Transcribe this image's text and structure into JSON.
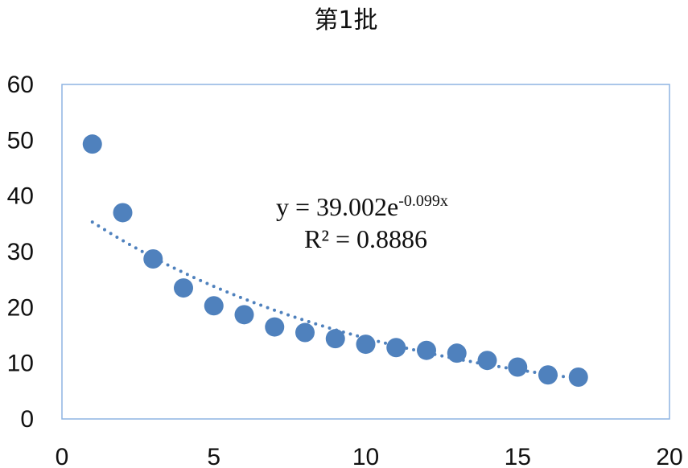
{
  "chart_data": {
    "type": "scatter",
    "title": "第1批",
    "xlabel": "",
    "ylabel": "",
    "xlim": [
      0,
      20
    ],
    "ylim": [
      0,
      60
    ],
    "x_ticks": [
      0,
      5,
      10,
      15,
      20
    ],
    "y_ticks": [
      0,
      10,
      20,
      30,
      40,
      50,
      60
    ],
    "grid": false,
    "legend": "none",
    "marker_color": "#4F81BD",
    "series": [
      {
        "x": [
          1,
          2,
          3,
          4,
          5,
          6,
          7,
          8,
          9,
          10,
          11,
          12,
          13,
          14,
          15,
          16,
          17
        ],
        "y": [
          49.3,
          37.0,
          28.7,
          23.5,
          20.3,
          18.7,
          16.5,
          15.5,
          14.4,
          13.4,
          12.8,
          12.3,
          11.8,
          10.5,
          9.3,
          7.9,
          7.5
        ]
      }
    ],
    "trendline": {
      "type": "exponential",
      "a": 39.002,
      "b": -0.099,
      "x_range": [
        1,
        17
      ],
      "style": "dotted",
      "equation_prefix": "y = 39.002e",
      "equation_exponent": "-0.099x",
      "r_squared_label": "R² = 0.8886"
    }
  }
}
